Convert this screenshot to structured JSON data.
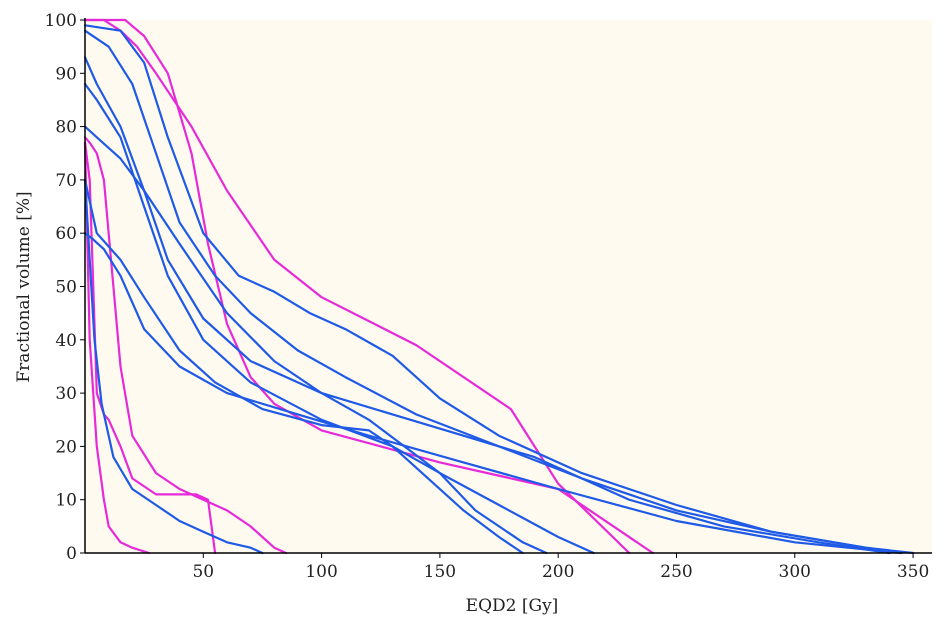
{
  "chart_data": {
    "type": "line",
    "xlabel": "EQD2 [Gy]",
    "ylabel": "Fractional volume [%]",
    "xlim": [
      0,
      358
    ],
    "ylim": [
      0,
      100
    ],
    "x_ticks": [
      50,
      100,
      150,
      200,
      250,
      300,
      350
    ],
    "y_ticks": [
      0,
      10,
      20,
      30,
      40,
      50,
      60,
      70,
      80,
      90,
      100
    ],
    "grid": false,
    "legend": "none",
    "colors": {
      "plot_bg": "#fefaf0",
      "blue": "#1f5ae6",
      "magenta": "#e62ad8",
      "axis": "#000000"
    },
    "series": [
      {
        "color": "magenta",
        "x": [
          0,
          17,
          25,
          35,
          45,
          52,
          60,
          70,
          80,
          100,
          150,
          200,
          240
        ],
        "y": [
          100,
          100,
          97,
          90,
          75,
          58,
          43,
          33,
          28,
          23,
          17,
          12,
          0
        ]
      },
      {
        "color": "magenta",
        "x": [
          0,
          8,
          15,
          22,
          30,
          45,
          60,
          80,
          100,
          140,
          180,
          200,
          230
        ],
        "y": [
          100,
          100,
          98,
          95,
          90,
          80,
          68,
          55,
          48,
          39,
          27,
          13,
          0
        ]
      },
      {
        "color": "magenta",
        "x": [
          0,
          2,
          5,
          8,
          12,
          15,
          20,
          30,
          40,
          50,
          60,
          70,
          75,
          80,
          85
        ],
        "y": [
          78,
          77,
          75,
          70,
          50,
          35,
          22,
          15,
          12,
          10,
          8,
          5,
          3,
          1,
          0
        ]
      },
      {
        "color": "magenta",
        "x": [
          0,
          2,
          5,
          8,
          10,
          15,
          20,
          30,
          35,
          40,
          47,
          52,
          55
        ],
        "y": [
          77,
          70,
          30,
          26,
          25,
          20,
          14,
          11,
          11,
          11,
          11,
          10,
          0
        ]
      },
      {
        "color": "magenta",
        "x": [
          0,
          2,
          5,
          8,
          10,
          15,
          20,
          27
        ],
        "y": [
          77,
          40,
          20,
          10,
          5,
          2,
          1,
          0
        ]
      },
      {
        "color": "blue",
        "x": [
          0,
          15,
          25,
          35,
          50,
          65,
          80,
          95,
          110,
          130,
          150,
          175,
          210,
          250,
          290,
          330,
          345
        ],
        "y": [
          99,
          98,
          92,
          78,
          60,
          52,
          49,
          45,
          42,
          37,
          29,
          22,
          15,
          9,
          4,
          1,
          0
        ]
      },
      {
        "color": "blue",
        "x": [
          0,
          10,
          20,
          30,
          40,
          55,
          70,
          90,
          110,
          140,
          175,
          210,
          250,
          290,
          330,
          350
        ],
        "y": [
          98,
          95,
          88,
          75,
          62,
          52,
          45,
          38,
          33,
          26,
          20,
          14,
          8,
          4,
          1,
          0
        ]
      },
      {
        "color": "blue",
        "x": [
          0,
          5,
          15,
          25,
          35,
          50,
          70,
          100,
          130,
          160,
          190,
          230,
          270,
          310,
          340
        ],
        "y": [
          93,
          88,
          80,
          68,
          55,
          44,
          36,
          30,
          26,
          22,
          18,
          10,
          5,
          2,
          0
        ]
      },
      {
        "color": "blue",
        "x": [
          0,
          5,
          15,
          25,
          35,
          50,
          70,
          100,
          130,
          150,
          165,
          185,
          195
        ],
        "y": [
          88,
          85,
          78,
          65,
          52,
          40,
          32,
          25,
          20,
          15,
          8,
          2,
          0
        ]
      },
      {
        "color": "blue",
        "x": [
          0,
          5,
          15,
          25,
          40,
          60,
          80,
          100,
          120,
          135,
          150,
          175,
          200,
          215
        ],
        "y": [
          80,
          78,
          74,
          68,
          58,
          45,
          36,
          30,
          25,
          20,
          15,
          9,
          3,
          0
        ]
      },
      {
        "color": "blue",
        "x": [
          0,
          5,
          15,
          25,
          40,
          55,
          75,
          100,
          120,
          130,
          145,
          160,
          175,
          185
        ],
        "y": [
          70,
          60,
          55,
          48,
          38,
          32,
          27,
          24,
          23,
          20,
          14,
          8,
          3,
          0
        ]
      },
      {
        "color": "blue",
        "x": [
          0,
          3,
          8,
          15,
          25,
          40,
          60,
          90,
          120,
          160,
          200,
          250,
          300,
          345
        ],
        "y": [
          60,
          59,
          57,
          52,
          42,
          35,
          30,
          26,
          22,
          17,
          12,
          6,
          2,
          0
        ]
      },
      {
        "color": "blue",
        "x": [
          0,
          2,
          4,
          7,
          12,
          20,
          30,
          40,
          50,
          60,
          70,
          75
        ],
        "y": [
          70,
          55,
          40,
          28,
          18,
          12,
          9,
          6,
          4,
          2,
          1,
          0
        ]
      }
    ]
  }
}
